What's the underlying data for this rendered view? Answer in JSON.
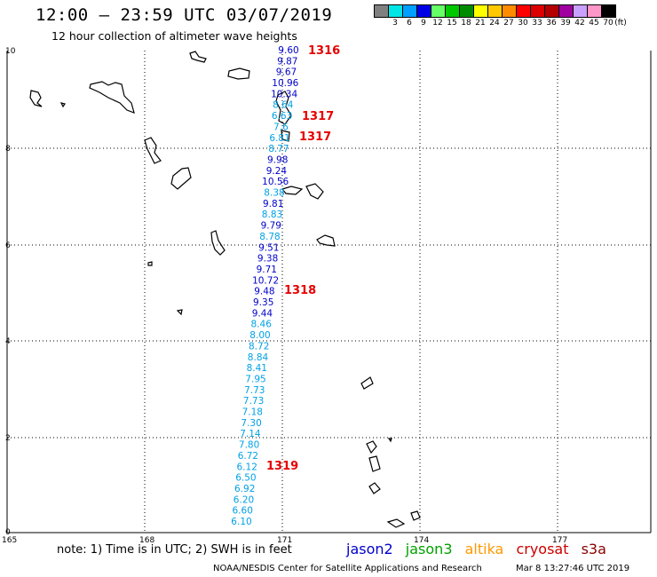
{
  "header": {
    "title": "12:00 – 23:59 UTC 03/07/2019",
    "subtitle": "12 hour collection of altimeter wave heights"
  },
  "legend": {
    "colors": [
      "#808080",
      "#00e6e6",
      "#00a0ff",
      "#0000e6",
      "#66ff66",
      "#00c800",
      "#008c00",
      "#ffff00",
      "#ffc800",
      "#ff8c00",
      "#ff0000",
      "#dc0000",
      "#b40000",
      "#a000a0",
      "#c8a0ff",
      "#ff96c8",
      "#000000"
    ],
    "labels": [
      "3",
      "6",
      "9",
      "12",
      "15",
      "18",
      "21",
      "24",
      "27",
      "30",
      "33",
      "36",
      "39",
      "42",
      "45",
      "70",
      "(ft)"
    ]
  },
  "axes": {
    "y_labels": [
      "10",
      "8",
      "6",
      "4",
      "2",
      "0"
    ],
    "x_labels": [
      "165",
      "168",
      "171",
      "174",
      "177"
    ]
  },
  "colors": {
    "jason2": "#0000cc",
    "jason3": "#00a000",
    "altika": "#ff9900",
    "cryosat": "#cc0000",
    "s3a": "#880000",
    "cyan_swh": "#00a0e6",
    "blue_swh": "#0000cc",
    "time": "#e60000"
  },
  "wave_heights": [
    {
      "v": "9.60",
      "c": "b"
    },
    {
      "v": "9.87",
      "c": "b"
    },
    {
      "v": "9.67",
      "c": "b"
    },
    {
      "v": "10.96",
      "c": "b"
    },
    {
      "v": "10.34",
      "c": "b"
    },
    {
      "v": "8.64",
      "c": "c"
    },
    {
      "v": "6.63",
      "c": "c"
    },
    {
      "v": "7.6",
      "c": "c"
    },
    {
      "v": "6.81",
      "c": "c"
    },
    {
      "v": "8.77",
      "c": "c"
    },
    {
      "v": "9.98",
      "c": "b"
    },
    {
      "v": "9.24",
      "c": "b"
    },
    {
      "v": "10.56",
      "c": "b"
    },
    {
      "v": "8.38",
      "c": "c"
    },
    {
      "v": "9.81",
      "c": "b"
    },
    {
      "v": "8.83",
      "c": "c"
    },
    {
      "v": "9.79",
      "c": "b"
    },
    {
      "v": "8.78",
      "c": "c"
    },
    {
      "v": "9.51",
      "c": "b"
    },
    {
      "v": "9.38",
      "c": "b"
    },
    {
      "v": "9.71",
      "c": "b"
    },
    {
      "v": "10.72",
      "c": "b"
    },
    {
      "v": "9.48",
      "c": "b"
    },
    {
      "v": "9.35",
      "c": "b"
    },
    {
      "v": "9.44",
      "c": "b"
    },
    {
      "v": "8.46",
      "c": "c"
    },
    {
      "v": "8.00",
      "c": "c"
    },
    {
      "v": "8.72",
      "c": "c"
    },
    {
      "v": "8.84",
      "c": "c"
    },
    {
      "v": "8.41",
      "c": "c"
    },
    {
      "v": "7.95",
      "c": "c"
    },
    {
      "v": "7.73",
      "c": "c"
    },
    {
      "v": "7.73",
      "c": "c"
    },
    {
      "v": "7.18",
      "c": "c"
    },
    {
      "v": "7.30",
      "c": "c"
    },
    {
      "v": "7.14",
      "c": "c"
    },
    {
      "v": "7.80",
      "c": "c"
    },
    {
      "v": "6.72",
      "c": "c"
    },
    {
      "v": "6.12",
      "c": "c"
    },
    {
      "v": "6.50",
      "c": "c"
    },
    {
      "v": "6.92",
      "c": "c"
    },
    {
      "v": "6.20",
      "c": "c"
    },
    {
      "v": "6.60",
      "c": "c"
    },
    {
      "v": "6.10",
      "c": "c"
    }
  ],
  "times": [
    "1316",
    "1317",
    "1317",
    "1318",
    "1319"
  ],
  "note": "note: 1) Time is in UTC; 2) SWH is in feet",
  "satellites": [
    "jason2",
    "jason3",
    "altika",
    "cryosat",
    "s3a"
  ],
  "footer": {
    "credit": "NOAA/NESDIS Center for Satellite Applications and Research",
    "timestamp": "Mar  8 13:27:46 UTC 2019"
  }
}
